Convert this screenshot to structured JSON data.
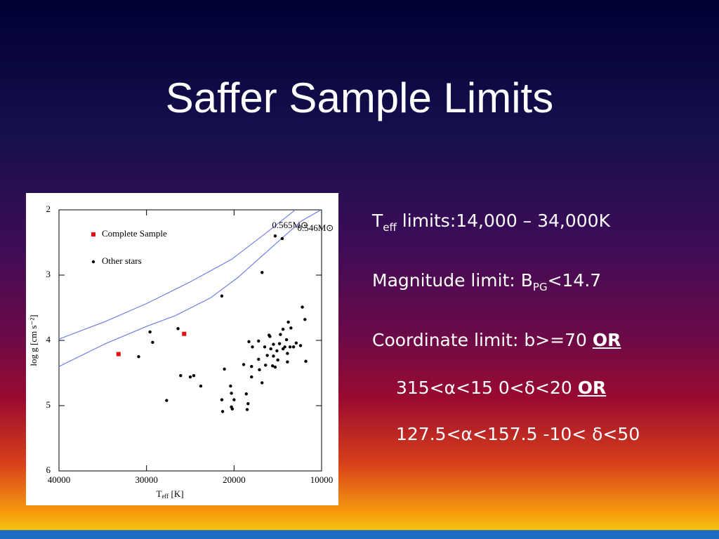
{
  "title": "Saffer Sample Limits",
  "bullets": [
    {
      "parts": [
        "T",
        "eff",
        " limits:14,000 – 34,000K"
      ]
    },
    {
      "parts": [
        "Magnitude limit: B",
        "PG",
        "<14.7"
      ]
    },
    {
      "parts": [
        "Coordinate limit: b>=70 ",
        "OR"
      ]
    },
    {
      "parts": [
        "315<α<15 0<δ<20 ",
        "OR"
      ]
    },
    {
      "parts": [
        "127.5<α<157.5 -10< δ<50"
      ]
    }
  ],
  "chart_data": {
    "type": "scatter",
    "xlabel": [
      "T",
      "eff",
      " [K]"
    ],
    "ylabel": "log g [cm s⁻²]",
    "xlim": [
      40000,
      10000
    ],
    "ylim": [
      6,
      2
    ],
    "xticks": [
      40000,
      30000,
      20000,
      10000
    ],
    "yticks": [
      2,
      3,
      4,
      5,
      6
    ],
    "legend": "upper left",
    "series": [
      {
        "name": "Complete Sample",
        "color": "#e01010",
        "marker": "square",
        "x": [
          33200,
          25700
        ],
        "y": [
          4.21,
          3.9
        ]
      },
      {
        "name": "Other stars",
        "color": "#000000",
        "marker": "circle",
        "x": [
          30900,
          29600,
          29300,
          27700,
          26400,
          26100,
          25000,
          24600,
          23800,
          21400,
          21100,
          21400,
          21300,
          20400,
          20300,
          20300,
          20200,
          20000,
          18900,
          18600,
          18400,
          18500,
          18300,
          18000,
          18000,
          17900,
          17200,
          17200,
          17100,
          16800,
          16800,
          16500,
          16400,
          16200,
          16000,
          15900,
          15800,
          15600,
          15500,
          15500,
          15300,
          15300,
          15100,
          15000,
          14800,
          14700,
          14500,
          14400,
          14400,
          14200,
          14000,
          13900,
          13900,
          13800,
          13600,
          13500,
          13200,
          12900,
          12400,
          12200,
          11900,
          11800
        ],
        "y": [
          4.25,
          3.87,
          4.03,
          4.92,
          3.82,
          4.54,
          4.56,
          4.54,
          4.7,
          3.32,
          4.44,
          4.91,
          5.09,
          4.7,
          4.81,
          5.02,
          5.05,
          4.91,
          4.37,
          4.82,
          4.97,
          5.06,
          4.02,
          4.4,
          4.56,
          4.1,
          4.01,
          4.29,
          4.45,
          4.65,
          2.96,
          4.1,
          4.38,
          4.23,
          3.92,
          3.94,
          4.13,
          4.39,
          4.06,
          4.24,
          2.4,
          4.41,
          4.16,
          4.3,
          4.05,
          3.91,
          2.44,
          4.13,
          3.83,
          4.1,
          3.99,
          4.33,
          4.2,
          3.72,
          4.1,
          3.81,
          4.1,
          4.04,
          4.08,
          3.49,
          3.68,
          4.32
        ]
      }
    ],
    "tracks": [
      {
        "label": "0.565M⊙",
        "color": "#6f7fe6",
        "x": [
          40000,
          34700,
          29900,
          25100,
          20300,
          16300,
          13100
        ],
        "y": [
          3.98,
          3.71,
          3.43,
          3.11,
          2.76,
          2.35,
          2.01
        ]
      },
      {
        "label": "0.546M⊙",
        "color": "#6f7fe6",
        "x": [
          40000,
          34700,
          29900,
          26700,
          22700,
          19500,
          15500,
          12300,
          10200
        ],
        "y": [
          4.4,
          4.05,
          3.78,
          3.62,
          3.35,
          3.03,
          2.55,
          2.17,
          2.01
        ]
      }
    ]
  }
}
